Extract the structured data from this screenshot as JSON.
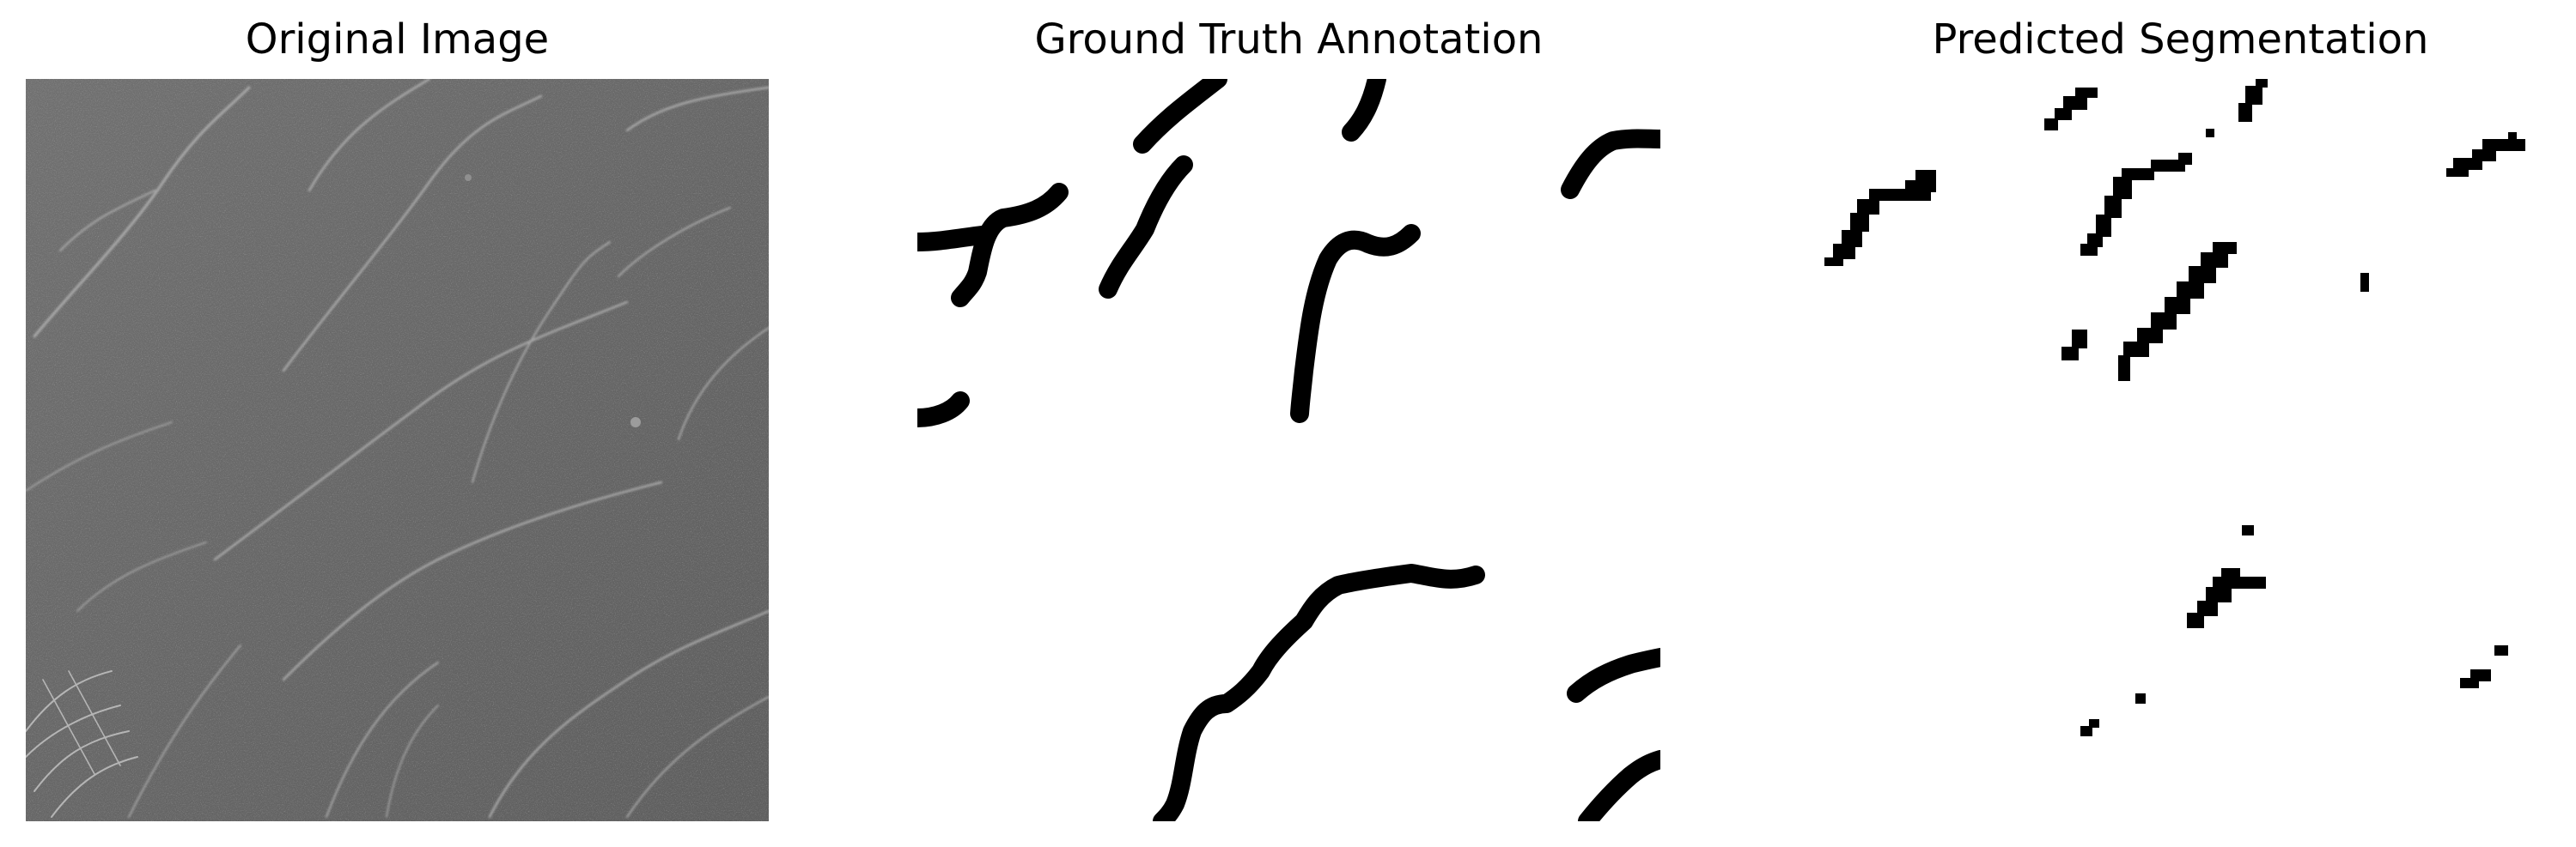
{
  "panels": [
    {
      "title": "Original Image",
      "kind": "grayscale-photo",
      "subject": "texture-with-cracks"
    },
    {
      "title": "Ground Truth Annotation",
      "kind": "binary-mask"
    },
    {
      "title": "Predicted Segmentation",
      "kind": "binary-mask"
    }
  ],
  "colors": {
    "background": "#ffffff",
    "mask_foreground": "#000000",
    "photo_base": "#6e6e6e",
    "crack_highlight": "#b9b9b9"
  }
}
